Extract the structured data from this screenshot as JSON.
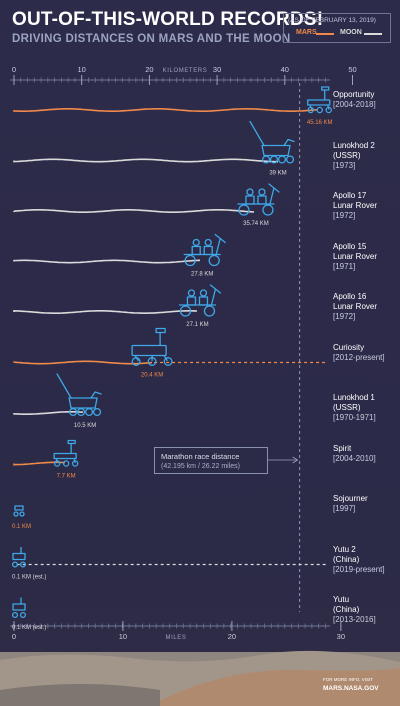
{
  "header": {
    "title": "OUT-OF-THIS-WORLD RECORDS!",
    "subtitle": "DRIVING DISTANCES ON MARS AND THE MOON",
    "as_of": "(AS OF FEBRUARY 13, 2019)",
    "legend_mars": "MARS",
    "legend_moon": "MOON"
  },
  "colors": {
    "background": "#2b2a47",
    "mars": "#f08a4b",
    "moon": "#dadada",
    "rover_icon": "#3ea8e8",
    "axis": "#6f7595"
  },
  "marathon": {
    "title": "Marathon race distance",
    "subtitle": "(42.195 km / 26.22 miles)"
  },
  "footer": {
    "credit_small": "FOR MORE INFO, VISIT",
    "credit_url": "MARS.NASA.GOV"
  },
  "chart_data": {
    "type": "bar",
    "top_axis": {
      "label": "KILOMETERS",
      "ticks": [
        0,
        10,
        20,
        30,
        40,
        50
      ],
      "range": [
        0,
        50
      ]
    },
    "bottom_axis": {
      "label": "MILES",
      "ticks": [
        0,
        10,
        20,
        30
      ],
      "range": [
        0,
        31.07
      ]
    },
    "reference_line": {
      "label": "Marathon race distance",
      "value_km": 42.195,
      "value_miles": 26.22
    },
    "rovers": [
      {
        "name": "Opportunity",
        "dates": "[2004-2018]",
        "body": "mars",
        "distance_km": 45.16,
        "label": "45.16 KM",
        "projected": false,
        "icon": "mer-rover-icon"
      },
      {
        "name": "Lunokhod 2\n(USSR)",
        "dates": "[1973]",
        "body": "moon",
        "distance_km": 39,
        "label": "39 KM",
        "projected": false,
        "icon": "lunokhod-icon"
      },
      {
        "name": "Apollo 17\nLunar Rover",
        "dates": "[1972]",
        "body": "moon",
        "distance_km": 35.74,
        "label": "35.74 KM",
        "projected": false,
        "icon": "lunar-rover-icon"
      },
      {
        "name": "Apollo 15\nLunar Rover",
        "dates": "[1971]",
        "body": "moon",
        "distance_km": 27.8,
        "label": "27.8 KM",
        "projected": false,
        "icon": "lunar-rover-icon"
      },
      {
        "name": "Apollo 16\nLunar Rover",
        "dates": "[1972]",
        "body": "moon",
        "distance_km": 27.1,
        "label": "27.1 KM",
        "projected": false,
        "icon": "lunar-rover-icon"
      },
      {
        "name": "Curiosity",
        "dates": "[2012-present]",
        "body": "mars",
        "distance_km": 20.4,
        "label": "20.4 KM",
        "projected": true,
        "icon": "curiosity-rover-icon"
      },
      {
        "name": "Lunokhod 1\n(USSR)",
        "dates": "[1970-1971]",
        "body": "moon",
        "distance_km": 10.5,
        "label": "10.5 KM",
        "projected": false,
        "icon": "lunokhod-icon"
      },
      {
        "name": "Spirit",
        "dates": "[2004-2010]",
        "body": "mars",
        "distance_km": 7.7,
        "label": "7.7 KM",
        "projected": false,
        "icon": "mer-rover-icon"
      },
      {
        "name": "Sojourner",
        "dates": "[1997]",
        "body": "mars",
        "distance_km": 0.1,
        "label": "0.1 KM",
        "projected": false,
        "icon": "sojourner-icon"
      },
      {
        "name": "Yutu 2\n(China)",
        "dates": "[2019-present]",
        "body": "moon",
        "distance_km": 0.1,
        "label": "0.1 KM (est.)",
        "projected": true,
        "icon": "yutu-rover-icon"
      },
      {
        "name": "Yutu\n(China)",
        "dates": "[2013-2016]",
        "body": "moon",
        "distance_km": 0.1,
        "label": "0.1 KM (est.)",
        "projected": false,
        "icon": "yutu-rover-icon"
      }
    ]
  }
}
